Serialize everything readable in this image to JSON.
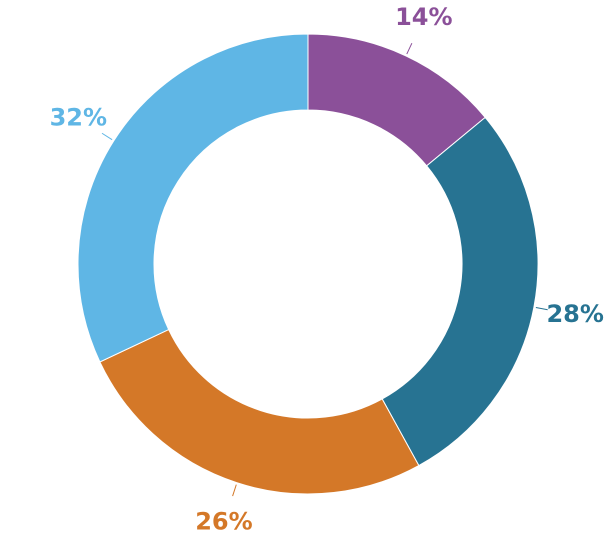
{
  "chart_data": {
    "type": "donut",
    "values": [
      14,
      28,
      26,
      32
    ],
    "value_labels": [
      "14%",
      "28%",
      "26%",
      "32%"
    ],
    "colors": [
      "#8b5099",
      "#277392",
      "#d47828",
      "#5fb6e5"
    ]
  }
}
